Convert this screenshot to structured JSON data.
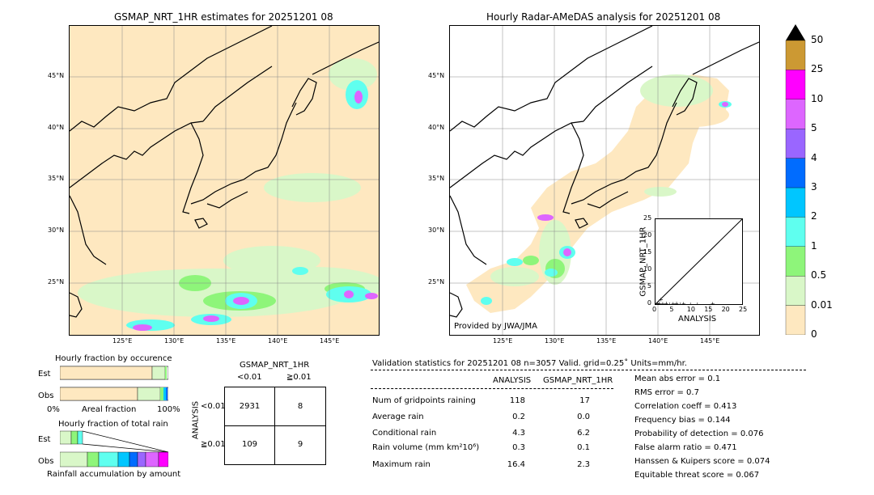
{
  "left_map": {
    "title": "GSMAP_NRT_1HR estimates for 20251201 08"
  },
  "right_map": {
    "title": "Hourly Radar-AMeDAS analysis for 20251201 08",
    "credit": "Provided by JWA/JMA"
  },
  "lat_labels": [
    "45°N",
    "40°N",
    "35°N",
    "30°N",
    "25°N"
  ],
  "lon_labels": [
    "125°E",
    "130°E",
    "135°E",
    "140°E",
    "145°E"
  ],
  "colorbar": {
    "ticks": [
      "0",
      "0.01",
      "0.5",
      "1",
      "2",
      "3",
      "4",
      "5",
      "10",
      "25",
      "50"
    ],
    "colors": [
      "#fee8c0",
      "#d9f7c8",
      "#8ef57a",
      "#5fffef",
      "#00c6ff",
      "#006cff",
      "#9a66ff",
      "#dd66ff",
      "#ff00ff",
      "#cc9933"
    ],
    "extend_color": "#000000"
  },
  "scatter": {
    "xlabel": "ANALYSIS",
    "ylabel": "GSMAP_NRT_1HR",
    "ticks": [
      "0",
      "5",
      "10",
      "15",
      "20",
      "25"
    ]
  },
  "fraction_occurrence": {
    "title": "Hourly fraction by occurence",
    "rows": [
      "Est",
      "Obs"
    ],
    "xleft": "0%",
    "xmid": "Areal fraction",
    "xright": "100%"
  },
  "fraction_total": {
    "title": "Hourly fraction of total rain",
    "rows": [
      "Est",
      "Obs"
    ],
    "xlabel": "Rainfall accumulation by amount"
  },
  "contingency": {
    "title": "GSMAP_NRT_1HR",
    "col1": "<0.01",
    "col2": "≧0.01",
    "row_axis": "ANALYSIS",
    "row1": "<0.01",
    "row2": "≧0.01",
    "cells": [
      "2931",
      "8",
      "109",
      "9"
    ]
  },
  "validation": {
    "header": "Validation statistics for 20251201 08  n=3057 Valid. grid=0.25˚ Units=mm/hr.",
    "col1": "ANALYSIS",
    "col2": "GSMAP_NRT_1HR",
    "rows": [
      {
        "label": "Num of gridpoints raining",
        "a": "118",
        "b": "17"
      },
      {
        "label": "Average rain",
        "a": "0.2",
        "b": "0.0"
      },
      {
        "label": "Conditional rain",
        "a": "4.3",
        "b": "6.2"
      },
      {
        "label": "Rain volume (mm km²10⁶)",
        "a": "0.3",
        "b": "0.1"
      },
      {
        "label": "Maximum rain",
        "a": "16.4",
        "b": "2.3"
      }
    ],
    "scores": [
      "Mean abs error =    0.1",
      "RMS error =    0.7",
      "Correlation coeff =  0.413",
      "Frequency bias =  0.144",
      "Probability of detection =  0.076",
      "False alarm ratio =  0.471",
      "Hanssen & Kuipers score =  0.074",
      "Equitable threat score =  0.067"
    ]
  },
  "chart_data": [
    {
      "type": "heatmap",
      "title": "GSMAP_NRT_1HR estimates for 20251201 08",
      "lon_range": [
        120,
        149
      ],
      "lat_range": [
        20,
        50
      ],
      "lon_ticks": [
        125,
        130,
        135,
        140,
        145
      ],
      "lat_ticks": [
        25,
        30,
        35,
        40,
        45
      ]
    },
    {
      "type": "heatmap",
      "title": "Hourly Radar-AMeDAS analysis for 20251201 08",
      "lon_range": [
        120,
        149
      ],
      "lat_range": [
        20,
        50
      ],
      "lon_ticks": [
        125,
        130,
        135,
        140,
        145
      ],
      "lat_ticks": [
        25,
        30,
        35,
        40,
        45
      ]
    },
    {
      "type": "scatter",
      "xlabel": "ANALYSIS",
      "ylabel": "GSMAP_NRT_1HR",
      "xlim": [
        0,
        25
      ],
      "ylim": [
        0,
        25
      ],
      "points": [
        [
          0.2,
          0.1
        ],
        [
          0.5,
          0.2
        ],
        [
          1,
          0.3
        ],
        [
          1.5,
          1.6
        ],
        [
          2,
          0.2
        ],
        [
          3,
          0.4
        ],
        [
          4,
          0.1
        ],
        [
          5,
          0.2
        ],
        [
          6,
          0.3
        ],
        [
          7,
          0.1
        ],
        [
          8,
          0.2
        ],
        [
          10,
          0.1
        ],
        [
          12,
          0.1
        ],
        [
          16.4,
          0.2
        ]
      ]
    },
    {
      "type": "table",
      "title": "GSMAP_NRT_1HR",
      "columns": [
        "<0.01",
        "≧0.01"
      ],
      "rows": [
        "<0.01",
        "≧0.01"
      ],
      "values": [
        [
          2931,
          8
        ],
        [
          109,
          9
        ]
      ]
    }
  ]
}
